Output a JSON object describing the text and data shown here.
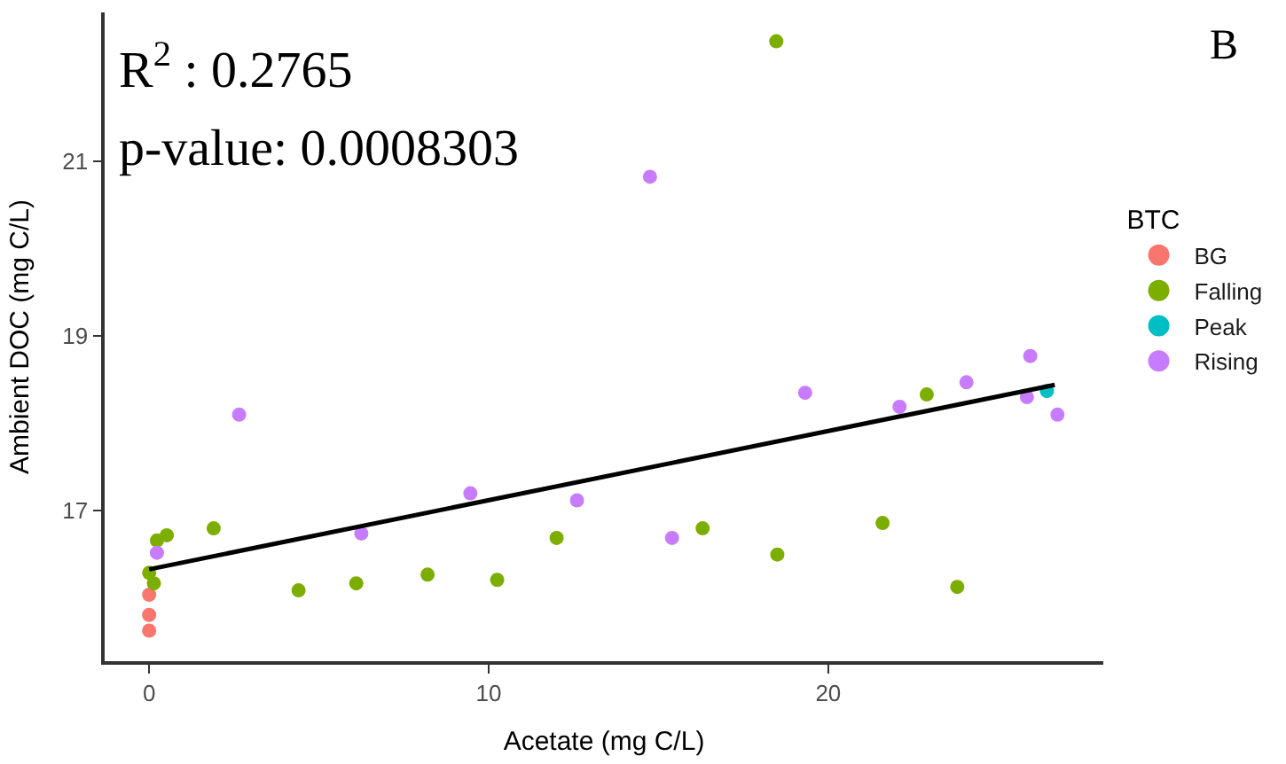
{
  "chart_data": {
    "type": "scatter",
    "xlabel": "Acetate (mg C/L)",
    "ylabel": "Ambient DOC (mg C/L)",
    "legend_title": "BTC",
    "annotations": [
      "R$^{2}$ : 0.2765",
      "p-value: 0.0008303",
      "B"
    ],
    "xlim": [
      -1.31,
      28.1
    ],
    "xticks": [
      0,
      10,
      20
    ],
    "ylim": [
      15.28,
      22.7
    ],
    "yticks": [
      17,
      19,
      21
    ],
    "grid": false,
    "legend": "right",
    "marker": "circle",
    "series": [
      {
        "name": "BG",
        "color": "#f8766d",
        "x": [
          0,
          0,
          0
        ],
        "values": [
          15.63,
          15.81,
          16.04
        ]
      },
      {
        "name": "Falling",
        "color": "#7cae00",
        "x": [
          0,
          0.14,
          0.23,
          0.52,
          1.9,
          4.4,
          6.1,
          8.2,
          10.25,
          12.0,
          16.3,
          18.47,
          18.5,
          21.6,
          22.9,
          23.8
        ],
        "values": [
          16.29,
          16.17,
          16.66,
          16.72,
          16.8,
          16.09,
          16.17,
          16.27,
          16.21,
          16.69,
          16.8,
          22.37,
          16.5,
          16.86,
          18.33,
          16.13
        ]
      },
      {
        "name": "Peak",
        "color": "#00bfc4",
        "x": [
          26.44
        ],
        "values": [
          18.37
        ]
      },
      {
        "name": "Rising",
        "color": "#c77cff",
        "x": [
          0.23,
          2.65,
          6.25,
          9.46,
          12.6,
          14.75,
          15.4,
          19.32,
          22.1,
          24.07,
          25.95,
          25.85,
          26.75
        ],
        "values": [
          16.52,
          18.1,
          16.74,
          17.2,
          17.12,
          20.82,
          16.69,
          18.35,
          18.19,
          18.47,
          18.77,
          18.3,
          18.1
        ]
      },
      {
        "type": "line",
        "marker": "none",
        "color": "#000000",
        "x": [
          0,
          26.67
        ],
        "values": [
          16.33,
          18.44
        ]
      }
    ]
  }
}
